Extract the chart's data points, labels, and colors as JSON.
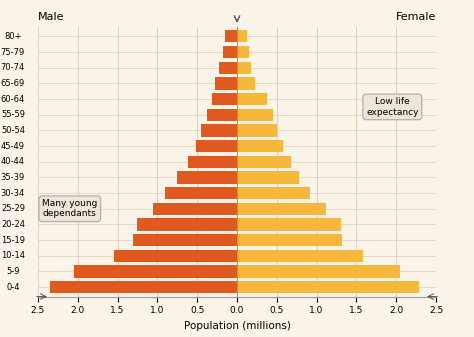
{
  "age_groups": [
    "0-4",
    "5-9",
    "10-14",
    "15-19",
    "20-24",
    "25-29",
    "30-34",
    "35-39",
    "40-44",
    "45-49",
    "50-54",
    "55-59",
    "60-64",
    "65-69",
    "70-74",
    "75-79",
    "80+"
  ],
  "male": [
    2.35,
    2.05,
    1.55,
    1.3,
    1.25,
    1.05,
    0.9,
    0.75,
    0.62,
    0.52,
    0.45,
    0.38,
    0.32,
    0.27,
    0.22,
    0.18,
    0.15
  ],
  "female": [
    2.28,
    2.05,
    1.58,
    1.32,
    1.3,
    1.12,
    0.92,
    0.78,
    0.68,
    0.58,
    0.5,
    0.45,
    0.38,
    0.22,
    0.18,
    0.15,
    0.12
  ],
  "male_color": "#E05A20",
  "female_color": "#F5B83A",
  "background_color": "#FAF3E8",
  "grid_color": "#DCCFB8",
  "title_male": "Male",
  "title_female": "Female",
  "xlabel": "Population (millions)",
  "xlim": 2.5,
  "annotation_left": "Many young\ndependants",
  "annotation_right": "Low life\nexpectancy",
  "bar_height": 0.78
}
